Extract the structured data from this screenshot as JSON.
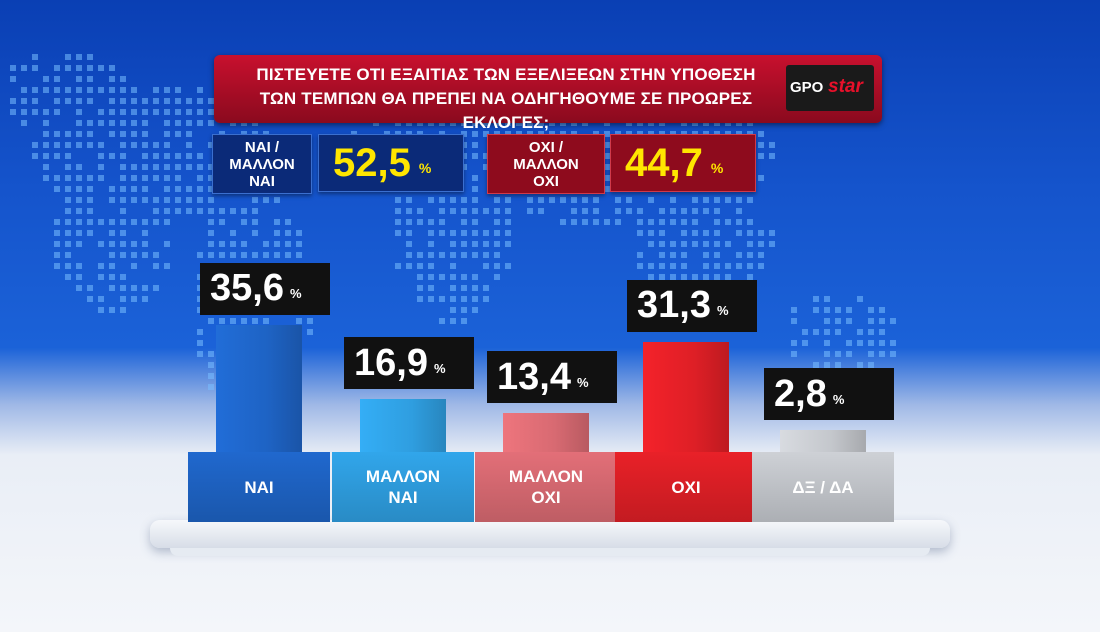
{
  "title_line1": "ΠΙΣΤΕΥΕΤΕ ΟΤΙ ΕΞΑΙΤΙΑΣ ΤΩΝ ΕΞΕΛΙΞΕΩΝ ΣΤΗΝ ΥΠΟΘΕΣΗ",
  "title_line2": "ΤΩΝ ΤΕΜΠΩΝ ΘΑ ΠΡΕΠΕΙ ΝΑ ΟΔΗΓΗΘΟΥΜΕ ΣΕ ΠΡΟΩΡΕΣ ΕΚΛΟΓΕΣ;",
  "logo": {
    "gpo": "GPO",
    "star": "star"
  },
  "percent_sign": "%",
  "summary": [
    {
      "label_line1": "ΝΑΙ /",
      "label_line2": "ΜΑΛΛΟΝ",
      "label_line3": "ΝΑΙ",
      "value": "52,5",
      "color": "#0b2a78"
    },
    {
      "label_line1": "ΟΧΙ /",
      "label_line2": "ΜΑΛΛΟΝ",
      "label_line3": "ΟΧΙ",
      "value": "44,7",
      "color": "#8e0b1d"
    }
  ],
  "chart_data": {
    "type": "bar",
    "categories": [
      "ΝΑΙ",
      "ΜΑΛΛΟΝ ΝΑΙ",
      "ΜΑΛΛΟΝ ΟΧΙ",
      "ΟΧΙ",
      "ΔΞ / ΔΑ"
    ],
    "values": [
      35.6,
      16.9,
      13.4,
      31.3,
      2.8
    ],
    "value_labels": [
      "35,6",
      "16,9",
      "13,4",
      "31,3",
      "2,8"
    ],
    "colors": [
      "#1e63c4",
      "#2f9ee0",
      "#d86a72",
      "#de1f26",
      "#c4c7cc"
    ],
    "unit": "%"
  }
}
